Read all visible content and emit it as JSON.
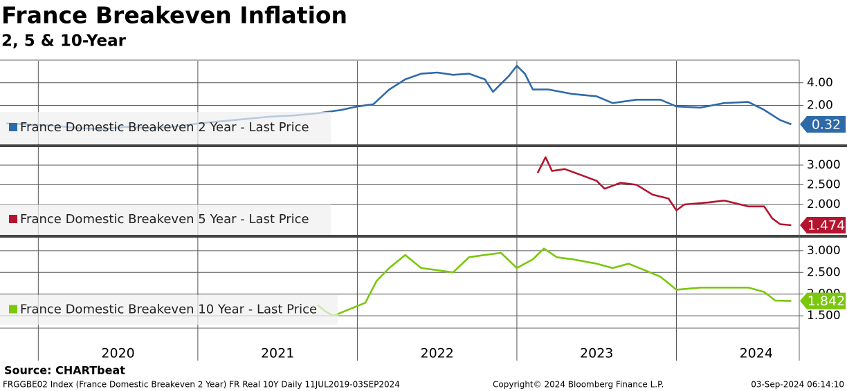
{
  "title": "France Breakeven Inflation",
  "subtitle": "2, 5 & 10-Year",
  "source": "Source: CHARTbeat",
  "footer": {
    "left": "FRGGBE02 Index (France Domestic Breakeven 2 Year) FR Real 10Y  Daily 11JUL2019-03SEP2024",
    "center": "Copyright© 2024 Bloomberg Finance L.P.",
    "right": "03-Sep-2024 06:14:10"
  },
  "chart_data": [
    {
      "type": "line",
      "x": [
        2019.8,
        2019.95,
        2020.1,
        2020.25,
        2020.4,
        2020.55,
        2020.7,
        2020.85,
        2021.0,
        2021.15,
        2021.3,
        2021.45,
        2021.6,
        2021.75,
        2021.9,
        2022.0,
        2022.1,
        2022.2,
        2022.3,
        2022.4,
        2022.5,
        2022.6,
        2022.7,
        2022.8,
        2022.85,
        2022.95,
        2023.0,
        2023.05,
        2023.1,
        2023.2,
        2023.35,
        2023.5,
        2023.6,
        2023.75,
        2023.9,
        2024.0,
        2024.15,
        2024.3,
        2024.45,
        2024.55,
        2024.65,
        2024.72
      ],
      "series": [
        {
          "name": "France Domestic Breakeven 2 Year - Last Price",
          "color": "#2e6aa8",
          "values": [
            0.4,
            0.3,
            0.2,
            0.0,
            -0.1,
            0.1,
            0.0,
            0.1,
            0.4,
            0.6,
            0.8,
            1.0,
            1.1,
            1.3,
            1.6,
            1.9,
            2.1,
            3.4,
            4.3,
            4.8,
            4.9,
            4.7,
            4.8,
            4.3,
            3.2,
            4.6,
            5.5,
            4.8,
            3.4,
            3.4,
            3.0,
            2.8,
            2.2,
            2.5,
            2.5,
            1.9,
            1.8,
            2.2,
            2.3,
            1.6,
            0.7,
            0.32
          ]
        }
      ],
      "xlim": [
        2019.76,
        2024.77
      ],
      "xticks": [
        2020,
        2021,
        2022,
        2023,
        2024
      ],
      "ylim": [
        -1.45,
        5.94
      ],
      "yticks": [
        {
          "value": 2,
          "label": "2.00"
        },
        {
          "value": 4,
          "label": "4.00"
        }
      ],
      "grid": true
    },
    {
      "type": "line",
      "x": [
        2023.13,
        2023.18,
        2023.22,
        2023.3,
        2023.4,
        2023.5,
        2023.55,
        2023.65,
        2023.75,
        2023.85,
        2023.95,
        2024.0,
        2024.05,
        2024.2,
        2024.3,
        2024.45,
        2024.55,
        2024.6,
        2024.65,
        2024.72
      ],
      "series": [
        {
          "name": "France Domestic Breakeven 5 Year - Last Price",
          "color": "#b5142e",
          "values": [
            2.8,
            3.2,
            2.85,
            2.9,
            2.75,
            2.6,
            2.4,
            2.55,
            2.5,
            2.25,
            2.15,
            1.85,
            2.0,
            2.05,
            2.1,
            1.95,
            1.95,
            1.65,
            1.5,
            1.474
          ]
        }
      ],
      "xlim": [
        2019.76,
        2024.77
      ],
      "xticks": [
        2020,
        2021,
        2022,
        2023,
        2024
      ],
      "ylim": [
        1.228,
        3.456
      ],
      "yticks": [
        {
          "value": 2,
          "label": "2.000"
        },
        {
          "value": 2.5,
          "label": "2.500"
        },
        {
          "value": 3,
          "label": "3.000"
        }
      ],
      "grid": true
    },
    {
      "type": "line",
      "x": [
        2021.75,
        2021.8,
        2021.85,
        2021.95,
        2022.05,
        2022.12,
        2022.2,
        2022.3,
        2022.4,
        2022.5,
        2022.6,
        2022.7,
        2022.8,
        2022.9,
        2023.0,
        2023.1,
        2023.17,
        2023.25,
        2023.35,
        2023.5,
        2023.6,
        2023.7,
        2023.8,
        2023.9,
        2024.0,
        2024.15,
        2024.3,
        2024.45,
        2024.55,
        2024.62,
        2024.72
      ],
      "series": [
        {
          "name": "France Domestic Breakeven 10 Year - Last Price",
          "color": "#7ac70c",
          "values": [
            1.75,
            1.6,
            1.5,
            1.65,
            1.8,
            2.3,
            2.6,
            2.9,
            2.6,
            2.55,
            2.5,
            2.85,
            2.9,
            2.95,
            2.6,
            2.8,
            3.05,
            2.85,
            2.8,
            2.7,
            2.6,
            2.7,
            2.55,
            2.4,
            2.1,
            2.15,
            2.15,
            2.15,
            2.05,
            1.85,
            1.842
          ]
        }
      ],
      "xlim": [
        2019.76,
        2024.77
      ],
      "xticks": [
        2020,
        2021,
        2022,
        2023,
        2024
      ],
      "ylim": [
        1.216,
        3.3
      ],
      "yticks": [
        {
          "value": 1.5,
          "label": "1.500"
        },
        {
          "value": 2,
          "label": "2.000"
        },
        {
          "value": 2.5,
          "label": "2.500"
        },
        {
          "value": 3,
          "label": "3.000"
        }
      ],
      "grid": true
    }
  ]
}
